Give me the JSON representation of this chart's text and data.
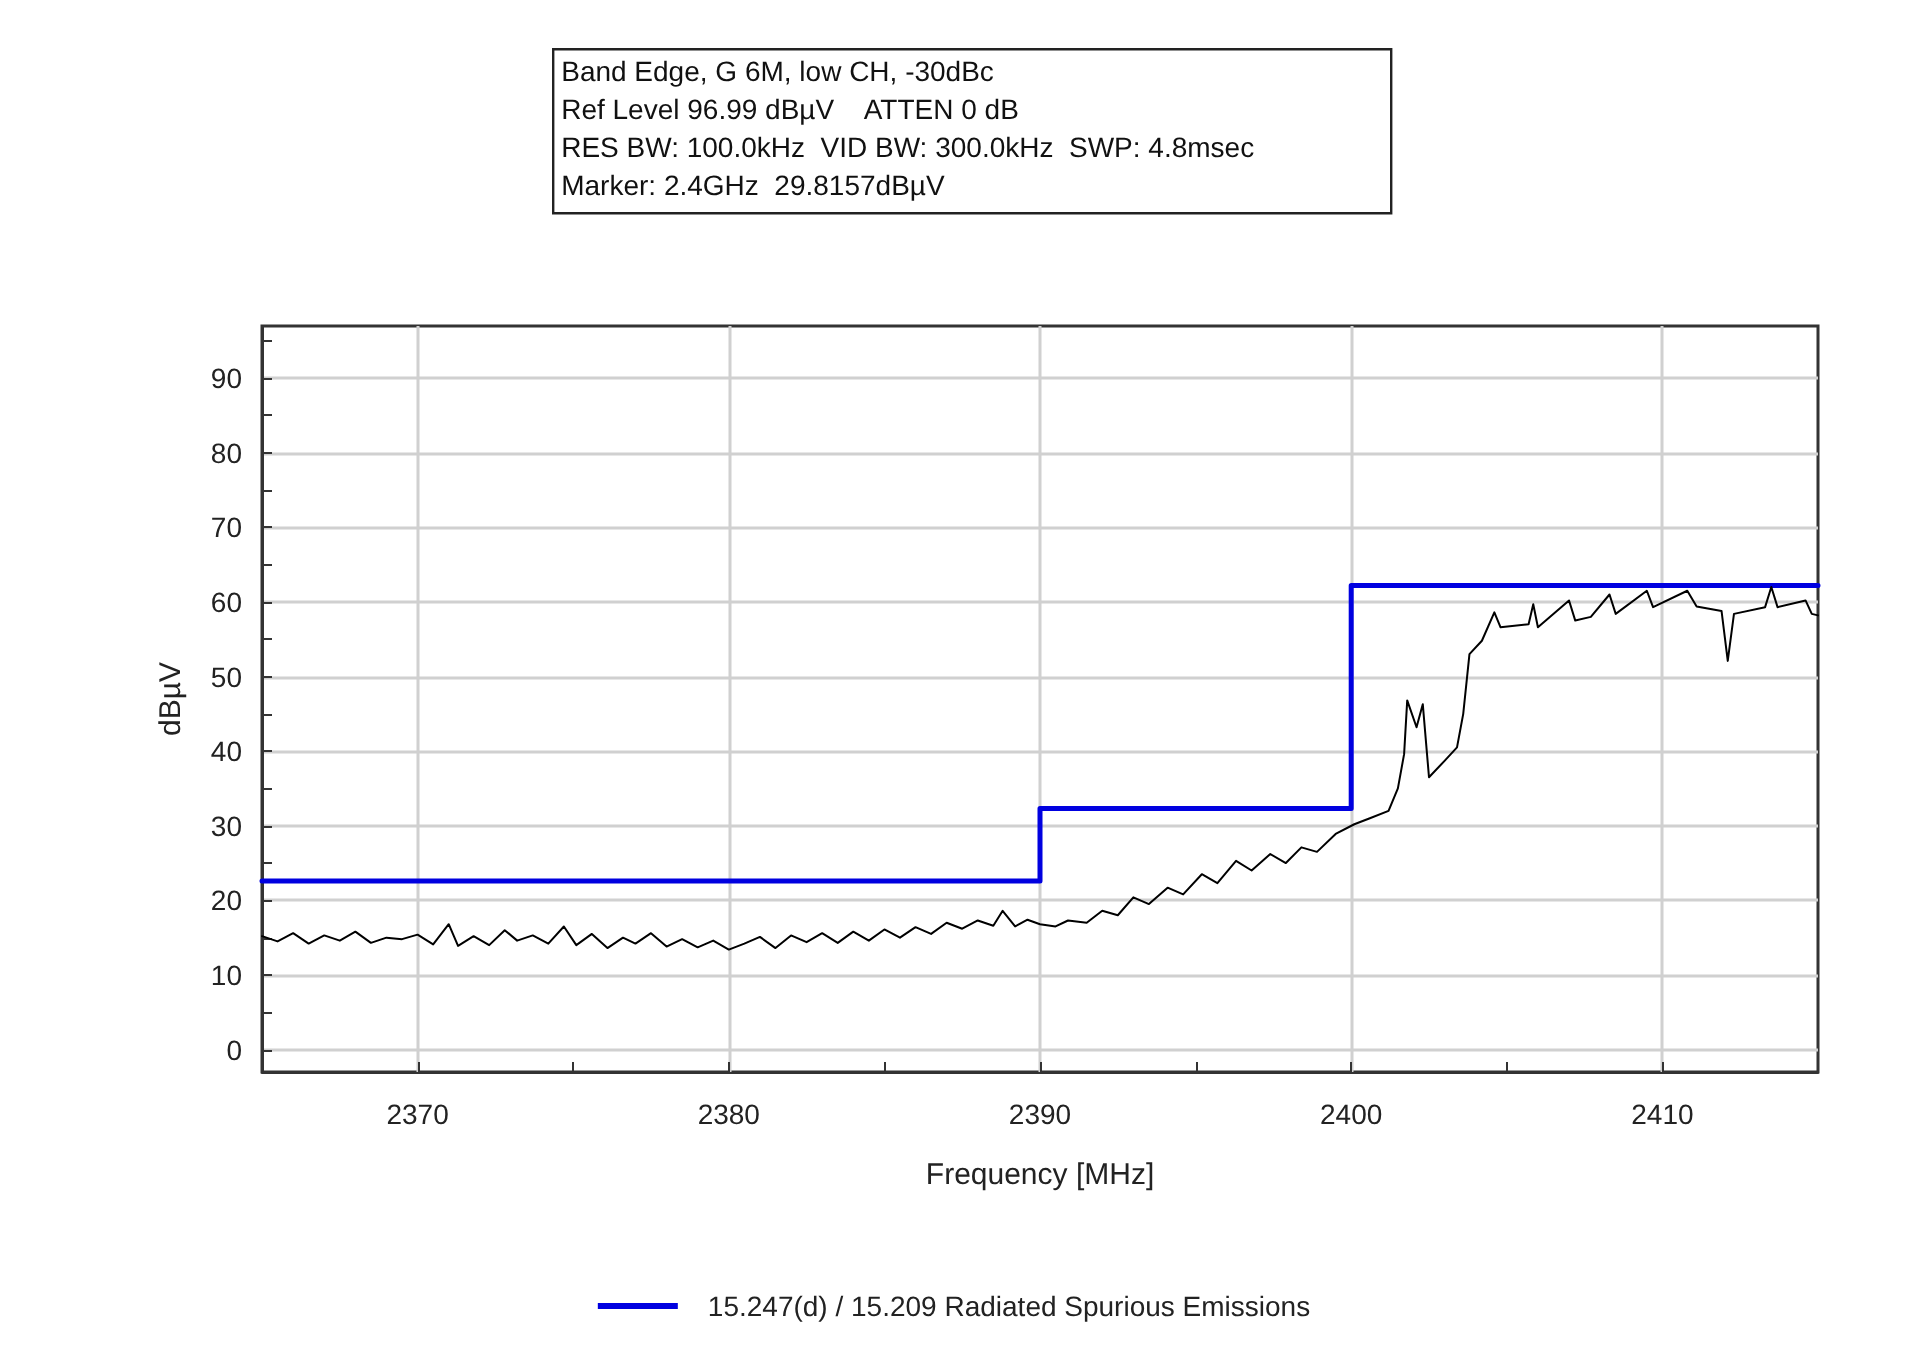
{
  "chart_data": {
    "type": "line",
    "annotations": [
      "Band Edge, G 6M, low CH, -30dBc",
      "Ref Level 96.99 dBµV    ATTEN 0 dB",
      "RES BW: 100.0kHz  VID BW: 300.0kHz  SWP: 4.8msec",
      "Marker: 2.4GHz  29.8157dBµV"
    ],
    "xlabel": "Frequency [MHz]",
    "ylabel": "dBµV",
    "xlim": [
      2365,
      2415
    ],
    "ylim": [
      -3.01,
      96.99
    ],
    "xticks": [
      {
        "value": 2365,
        "label": null
      },
      2370,
      {
        "value": 2375,
        "label": null
      },
      2380,
      {
        "value": 2385,
        "label": null
      },
      2390,
      {
        "value": 2395,
        "label": null
      },
      2400,
      {
        "value": 2405,
        "label": null
      },
      2410
    ],
    "yticks": [
      0,
      {
        "value": 5,
        "label": null
      },
      10,
      {
        "value": 15,
        "label": null
      },
      20,
      {
        "value": 25,
        "label": null
      },
      30,
      {
        "value": 35,
        "label": null
      },
      40,
      {
        "value": 45,
        "label": null
      },
      50,
      {
        "value": 55,
        "label": null
      },
      60,
      {
        "value": 65,
        "label": null
      },
      70,
      {
        "value": 75,
        "label": null
      },
      80,
      {
        "value": 85,
        "label": null
      },
      90,
      {
        "value": 95,
        "label": null
      }
    ],
    "grid": true,
    "legend": "bottom",
    "marker": "none",
    "line_style": "solid",
    "series": [
      {
        "color": "#000000",
        "x": [
          2365,
          2365.5,
          2366,
          2366.5,
          2367,
          2367.5,
          2368,
          2368.5,
          2369,
          2369.5,
          2370,
          2370.5,
          2371,
          2371.3,
          2371.8,
          2372.3,
          2372.8,
          2373.2,
          2373.7,
          2374.2,
          2374.7,
          2375.1,
          2375.6,
          2376.1,
          2376.6,
          2377,
          2377.5,
          2378,
          2378.5,
          2379,
          2379.5,
          2380,
          2380.5,
          2381,
          2381.5,
          2382,
          2382.5,
          2383,
          2383.5,
          2384,
          2384.5,
          2385,
          2385.5,
          2386,
          2386.5,
          2387,
          2387.5,
          2388,
          2388.5,
          2388.8,
          2389.2,
          2389.6,
          2390,
          2390.5,
          2390.9,
          2391.5,
          2392,
          2392.5,
          2393,
          2393.5,
          2394.1,
          2394.6,
          2395.2,
          2395.7,
          2396.3,
          2396.8,
          2397.4,
          2397.9,
          2398.4,
          2398.9,
          2399.5,
          2400.1,
          2400.6,
          2401.2,
          2401.5,
          2401.7,
          2401.8,
          2402.1,
          2402.3,
          2402.5,
          2403,
          2403.4,
          2403.6,
          2403.8,
          2404.2,
          2404.6,
          2404.8,
          2405.7,
          2405.85,
          2406,
          2407,
          2407.2,
          2407.7,
          2408.3,
          2408.5,
          2409.5,
          2409.7,
          2410.8,
          2411.1,
          2411.9,
          2412.1,
          2412.3,
          2413.3,
          2413.5,
          2413.7,
          2414.6,
          2414.8,
          2415
        ],
        "values": [
          15.2,
          14.5,
          15.6,
          14.2,
          15.3,
          14.6,
          15.8,
          14.3,
          15.0,
          14.8,
          15.4,
          14.1,
          16.8,
          13.9,
          15.2,
          14.0,
          16.0,
          14.6,
          15.3,
          14.2,
          16.5,
          14.0,
          15.5,
          13.6,
          15.0,
          14.2,
          15.6,
          13.8,
          14.8,
          13.7,
          14.6,
          13.4,
          14.2,
          15.1,
          13.6,
          15.3,
          14.4,
          15.6,
          14.3,
          15.8,
          14.6,
          16.1,
          15.0,
          16.4,
          15.5,
          17.0,
          16.2,
          17.3,
          16.6,
          18.6,
          16.5,
          17.4,
          16.8,
          16.5,
          17.3,
          17.0,
          18.6,
          18.0,
          20.4,
          19.5,
          21.7,
          20.8,
          23.5,
          22.3,
          25.3,
          24.0,
          26.2,
          25.0,
          27.1,
          26.5,
          28.9,
          30.2,
          31.0,
          32.0,
          35.0,
          39.6,
          46.8,
          43.2,
          46.3,
          36.5,
          38.7,
          40.5,
          45.0,
          53.0,
          54.8,
          58.6,
          56.6,
          57.0,
          59.7,
          56.6,
          60.2,
          57.5,
          58.0,
          61.0,
          58.4,
          61.5,
          59.3,
          61.5,
          59.4,
          58.8,
          52.1,
          58.4,
          59.3,
          62.0,
          59.3,
          60.2,
          58.4,
          58.2
        ]
      },
      {
        "name": "15.247(d) / 15.209 Radiated Spurious Emissions",
        "type": "step",
        "color": "#0000e0",
        "x": [
          2365,
          2390,
          2400,
          2415
        ],
        "values": [
          22.6,
          32.3,
          62.2,
          62.2
        ]
      }
    ]
  }
}
